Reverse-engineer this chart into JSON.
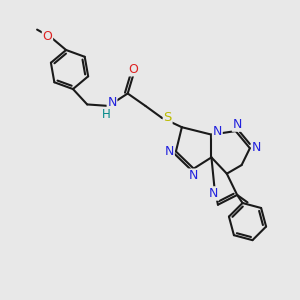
{
  "bg_color": "#e8e8e8",
  "bond_color": "#1a1a1a",
  "N_color": "#2222dd",
  "O_color": "#dd2222",
  "S_color": "#bbbb00",
  "H_color": "#008888",
  "lw": 1.5,
  "figsize": [
    3.0,
    3.0
  ],
  "dpi": 100,
  "xlim": [
    0,
    10
  ],
  "ylim": [
    0,
    10
  ]
}
